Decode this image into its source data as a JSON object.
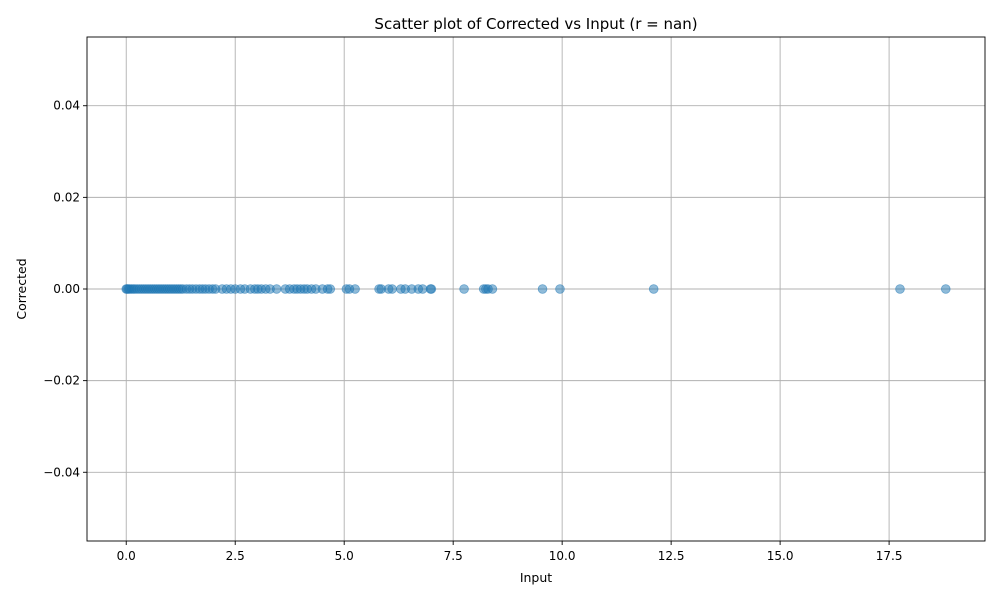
{
  "chart_data": {
    "type": "scatter",
    "title": "Scatter plot of Corrected vs Input (r = nan)",
    "xlabel": "Input",
    "ylabel": "Corrected",
    "xlim": [
      -0.9,
      19.7
    ],
    "ylim": [
      -0.055,
      0.055
    ],
    "grid": true,
    "point_color": "#1f77b4",
    "point_opacity": 0.5,
    "x_ticks": [
      0.0,
      2.5,
      5.0,
      7.5,
      10.0,
      12.5,
      15.0,
      17.5
    ],
    "x_tick_labels": [
      "0.0",
      "2.5",
      "5.0",
      "7.5",
      "10.0",
      "12.5",
      "15.0",
      "17.5"
    ],
    "y_ticks": [
      -0.04,
      -0.02,
      0.0,
      0.02,
      0.04
    ],
    "y_tick_labels": [
      "−0.04",
      "−0.02",
      "0.00",
      "0.02",
      "0.04"
    ],
    "points": [
      {
        "x": 0.0,
        "y": 0.0
      },
      {
        "x": 0.02,
        "y": 0.0
      },
      {
        "x": 0.05,
        "y": 0.0
      },
      {
        "x": 0.08,
        "y": 0.0
      },
      {
        "x": 0.12,
        "y": 0.0
      },
      {
        "x": 0.16,
        "y": 0.0
      },
      {
        "x": 0.2,
        "y": 0.0
      },
      {
        "x": 0.25,
        "y": 0.0
      },
      {
        "x": 0.3,
        "y": 0.0
      },
      {
        "x": 0.35,
        "y": 0.0
      },
      {
        "x": 0.4,
        "y": 0.0
      },
      {
        "x": 0.45,
        "y": 0.0
      },
      {
        "x": 0.5,
        "y": 0.0
      },
      {
        "x": 0.55,
        "y": 0.0
      },
      {
        "x": 0.6,
        "y": 0.0
      },
      {
        "x": 0.65,
        "y": 0.0
      },
      {
        "x": 0.7,
        "y": 0.0
      },
      {
        "x": 0.75,
        "y": 0.0
      },
      {
        "x": 0.8,
        "y": 0.0
      },
      {
        "x": 0.85,
        "y": 0.0
      },
      {
        "x": 0.9,
        "y": 0.0
      },
      {
        "x": 0.95,
        "y": 0.0
      },
      {
        "x": 1.0,
        "y": 0.0
      },
      {
        "x": 1.05,
        "y": 0.0
      },
      {
        "x": 1.1,
        "y": 0.0
      },
      {
        "x": 1.15,
        "y": 0.0
      },
      {
        "x": 1.2,
        "y": 0.0
      },
      {
        "x": 1.25,
        "y": 0.0
      },
      {
        "x": 1.3,
        "y": 0.0
      },
      {
        "x": 1.38,
        "y": 0.0
      },
      {
        "x": 1.45,
        "y": 0.0
      },
      {
        "x": 1.52,
        "y": 0.0
      },
      {
        "x": 1.6,
        "y": 0.0
      },
      {
        "x": 1.68,
        "y": 0.0
      },
      {
        "x": 1.75,
        "y": 0.0
      },
      {
        "x": 1.82,
        "y": 0.0
      },
      {
        "x": 1.9,
        "y": 0.0
      },
      {
        "x": 1.98,
        "y": 0.0
      },
      {
        "x": 2.05,
        "y": 0.0
      },
      {
        "x": 2.2,
        "y": 0.0
      },
      {
        "x": 2.3,
        "y": 0.0
      },
      {
        "x": 2.4,
        "y": 0.0
      },
      {
        "x": 2.5,
        "y": 0.0
      },
      {
        "x": 2.62,
        "y": 0.0
      },
      {
        "x": 2.72,
        "y": 0.0
      },
      {
        "x": 2.85,
        "y": 0.0
      },
      {
        "x": 2.95,
        "y": 0.0
      },
      {
        "x": 3.02,
        "y": 0.0
      },
      {
        "x": 3.1,
        "y": 0.0
      },
      {
        "x": 3.2,
        "y": 0.0
      },
      {
        "x": 3.3,
        "y": 0.0
      },
      {
        "x": 3.45,
        "y": 0.0
      },
      {
        "x": 3.65,
        "y": 0.0
      },
      {
        "x": 3.75,
        "y": 0.0
      },
      {
        "x": 3.85,
        "y": 0.0
      },
      {
        "x": 3.92,
        "y": 0.0
      },
      {
        "x": 4.0,
        "y": 0.0
      },
      {
        "x": 4.08,
        "y": 0.0
      },
      {
        "x": 4.15,
        "y": 0.0
      },
      {
        "x": 4.25,
        "y": 0.0
      },
      {
        "x": 4.35,
        "y": 0.0
      },
      {
        "x": 4.5,
        "y": 0.0
      },
      {
        "x": 4.62,
        "y": 0.0
      },
      {
        "x": 4.68,
        "y": 0.0
      },
      {
        "x": 5.05,
        "y": 0.0
      },
      {
        "x": 5.12,
        "y": 0.0
      },
      {
        "x": 5.25,
        "y": 0.0
      },
      {
        "x": 5.8,
        "y": 0.0
      },
      {
        "x": 5.85,
        "y": 0.0
      },
      {
        "x": 6.02,
        "y": 0.0
      },
      {
        "x": 6.1,
        "y": 0.0
      },
      {
        "x": 6.3,
        "y": 0.0
      },
      {
        "x": 6.4,
        "y": 0.0
      },
      {
        "x": 6.55,
        "y": 0.0
      },
      {
        "x": 6.7,
        "y": 0.0
      },
      {
        "x": 6.8,
        "y": 0.0
      },
      {
        "x": 6.98,
        "y": 0.0
      },
      {
        "x": 7.0,
        "y": 0.0
      },
      {
        "x": 7.75,
        "y": 0.0
      },
      {
        "x": 8.2,
        "y": 0.0
      },
      {
        "x": 8.25,
        "y": 0.0
      },
      {
        "x": 8.3,
        "y": 0.0
      },
      {
        "x": 8.4,
        "y": 0.0
      },
      {
        "x": 9.55,
        "y": 0.0
      },
      {
        "x": 9.95,
        "y": 0.0
      },
      {
        "x": 12.1,
        "y": 0.0
      },
      {
        "x": 17.75,
        "y": 0.0
      },
      {
        "x": 18.8,
        "y": 0.0
      }
    ]
  }
}
